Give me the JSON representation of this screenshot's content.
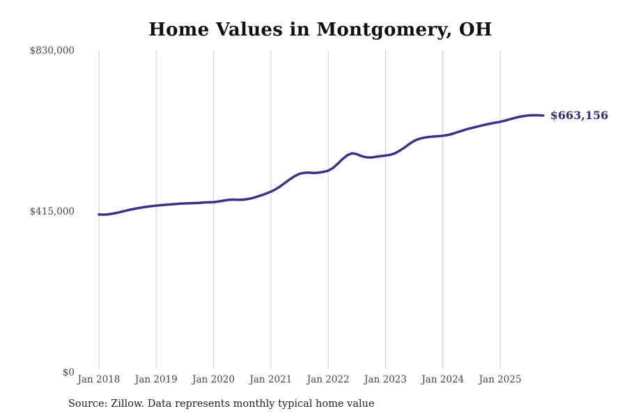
{
  "title": "Home Values in Montgomery, OH",
  "source_note": "Source: Zillow. Data represents monthly typical home value",
  "end_label": "$663,156",
  "colors": {
    "line": "#3b3188",
    "end_label": "#2f2b7b",
    "grid": "#cccccc",
    "axis_text": "#444444",
    "title_text": "#111111",
    "source_text": "#222222",
    "background": "#ffffff"
  },
  "chart_data": {
    "type": "line",
    "title": "Home Values in Montgomery, OH",
    "xlabel": "",
    "ylabel": "",
    "ylim": [
      0,
      830000
    ],
    "grid": "vertical-only",
    "legend": "none",
    "x_tick_labels": [
      "Jan 2018",
      "Jan 2019",
      "Jan 2020",
      "Jan 2021",
      "Jan 2022",
      "Jan 2023",
      "Jan 2024",
      "Jan 2025"
    ],
    "y_ticks": [
      {
        "label": "$0",
        "value": 0
      },
      {
        "label": "$415,000",
        "value": 415000
      },
      {
        "label": "$830,000",
        "value": 830000
      }
    ],
    "series": [
      {
        "name": "Monthly typical home value",
        "start_month": "Jan 2018",
        "end_month": "Oct 2025",
        "interval": "monthly",
        "final_value": 663156,
        "values": [
          408000,
          407500,
          408500,
          410500,
          413000,
          416000,
          419000,
          421500,
          424000,
          426000,
          428000,
          429500,
          431000,
          432000,
          433000,
          434000,
          435000,
          436000,
          436500,
          437000,
          437500,
          438000,
          439000,
          439500,
          440000,
          441500,
          443500,
          445500,
          446500,
          446000,
          446000,
          447500,
          450000,
          453500,
          457500,
          462000,
          467000,
          473000,
          481000,
          490000,
          499000,
          507000,
          513000,
          515500,
          516000,
          515000,
          516000,
          518000,
          521000,
          528000,
          539000,
          551000,
          561000,
          566000,
          563500,
          558500,
          555500,
          555000,
          557000,
          558500,
          560000,
          562000,
          566000,
          573000,
          581000,
          590000,
          598000,
          603000,
          606000,
          608000,
          609000,
          610000,
          611000,
          613000,
          616000,
          620000,
          624000,
          628000,
          631000,
          634000,
          637000,
          640000,
          642500,
          645000,
          647000,
          650000,
          653500,
          657000,
          660000,
          662000,
          663500,
          664000,
          663800,
          663156
        ]
      }
    ]
  }
}
